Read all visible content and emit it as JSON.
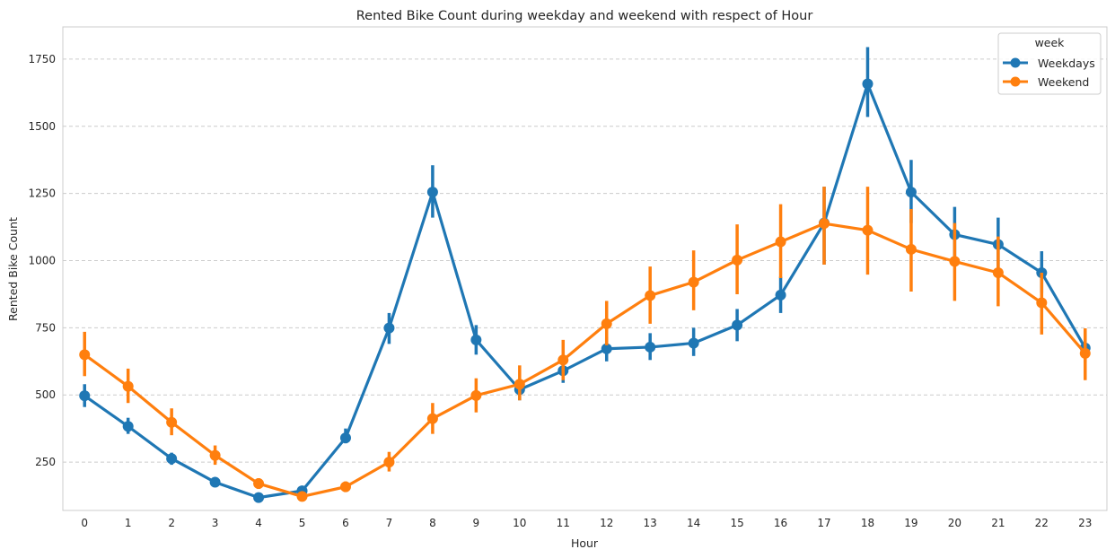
{
  "chart_data": {
    "type": "line",
    "title": "Rented Bike Count during weekday and weekend with respect of Hour",
    "xlabel": "Hour",
    "ylabel": "Rented Bike Count",
    "categories": [
      "0",
      "1",
      "2",
      "3",
      "4",
      "5",
      "6",
      "7",
      "8",
      "9",
      "10",
      "11",
      "12",
      "13",
      "14",
      "15",
      "16",
      "17",
      "18",
      "19",
      "20",
      "21",
      "22",
      "23"
    ],
    "ylim": [
      70,
      1870
    ],
    "yticks": [
      250,
      500,
      750,
      1000,
      1250,
      1500,
      1750
    ],
    "ytick_labels": [
      "250",
      "500",
      "750",
      "1000",
      "1250",
      "1500",
      "1750"
    ],
    "grid": "horizontal dashed",
    "legend": {
      "title": "week",
      "placement": "top-right"
    },
    "series": [
      {
        "name": "Weekdays",
        "color": "#1f77b4",
        "values": [
          497,
          383,
          263,
          175,
          118,
          143,
          340,
          749,
          1255,
          705,
          520,
          590,
          672,
          678,
          693,
          760,
          872,
          1140,
          1658,
          1255,
          1097,
          1060,
          955,
          675
        ],
        "ci_low": [
          455,
          355,
          240,
          165,
          108,
          130,
          320,
          690,
          1160,
          650,
          480,
          545,
          625,
          630,
          645,
          700,
          805,
          985,
          1535,
          1140,
          1000,
          970,
          880,
          620
        ],
        "ci_high": [
          540,
          415,
          285,
          185,
          128,
          155,
          375,
          805,
          1355,
          760,
          555,
          630,
          715,
          730,
          750,
          820,
          940,
          1275,
          1795,
          1375,
          1200,
          1160,
          1035,
          740
        ]
      },
      {
        "name": "Weekend",
        "color": "#ff7f0e",
        "values": [
          650,
          532,
          398,
          275,
          170,
          122,
          158,
          250,
          412,
          498,
          540,
          630,
          765,
          870,
          920,
          1002,
          1070,
          1138,
          1113,
          1042,
          997,
          955,
          843,
          655
        ],
        "ci_low": [
          570,
          470,
          350,
          240,
          150,
          108,
          140,
          215,
          355,
          435,
          480,
          555,
          685,
          765,
          815,
          875,
          935,
          985,
          948,
          885,
          850,
          830,
          725,
          555
        ],
        "ci_high": [
          735,
          598,
          450,
          312,
          190,
          138,
          178,
          288,
          470,
          562,
          610,
          705,
          850,
          978,
          1038,
          1135,
          1210,
          1275,
          1275,
          1192,
          1140,
          1090,
          955,
          748
        ]
      }
    ]
  }
}
